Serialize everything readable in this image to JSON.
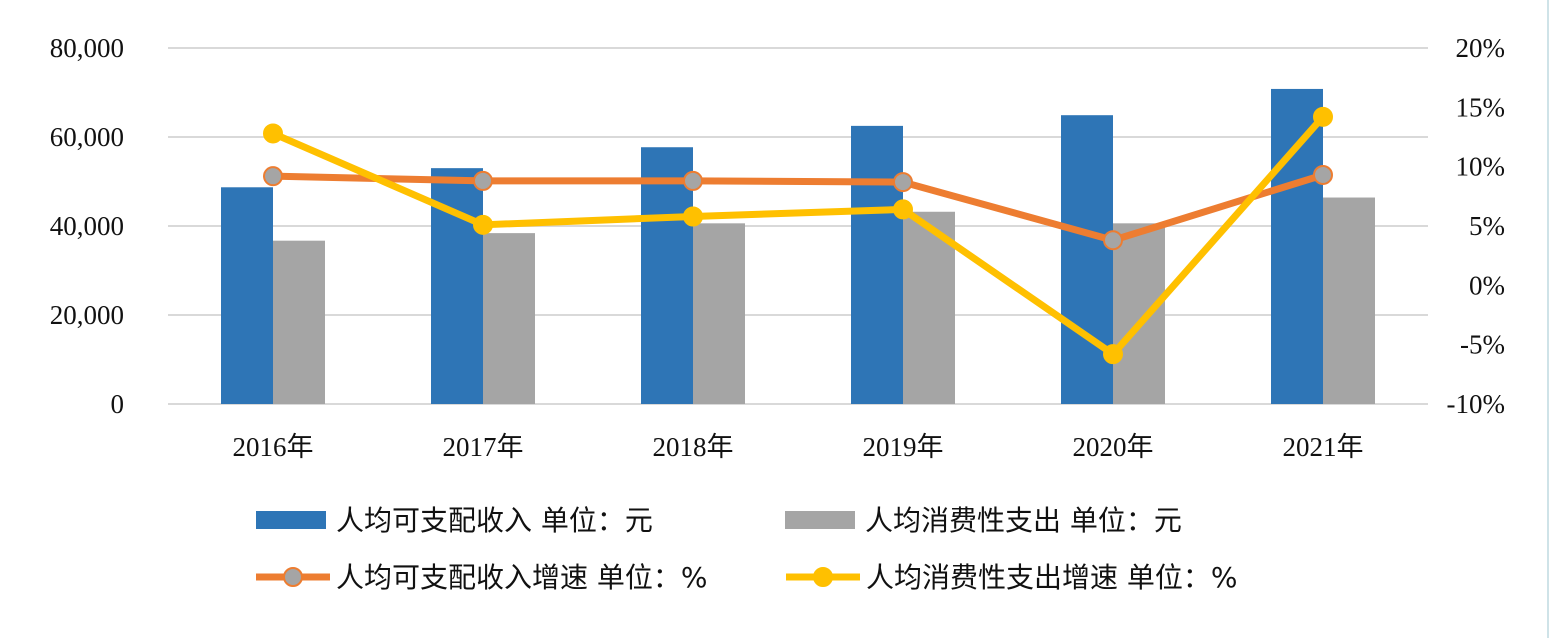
{
  "chart_data": {
    "type": "bar+line",
    "categories": [
      "2016年",
      "2017年",
      "2018年",
      "2019年",
      "2020年",
      "2021年"
    ],
    "y_left": {
      "range": [
        0,
        80000
      ],
      "ticks": [
        0,
        20000,
        40000,
        60000,
        80000
      ],
      "tick_labels": [
        "0",
        "20,000",
        "40,000",
        "60,000",
        "80,000"
      ]
    },
    "y_right": {
      "range": [
        -10,
        20
      ],
      "ticks": [
        -10,
        -5,
        0,
        5,
        10,
        15,
        20
      ],
      "tick_labels": [
        "-10%",
        "-5%",
        "0%",
        "5%",
        "10%",
        "15%",
        "20%"
      ]
    },
    "grid": true,
    "series": [
      {
        "name": "人均可支配收入 单位：元",
        "kind": "bar",
        "axis": "left",
        "color": "#2e75b6",
        "values": [
          48700,
          53000,
          57700,
          62500,
          64900,
          70800
        ]
      },
      {
        "name": "人均消费性支出 单位：元",
        "kind": "bar",
        "axis": "left",
        "color": "#a5a5a5",
        "values": [
          36700,
          38400,
          40600,
          43200,
          40600,
          46400
        ]
      },
      {
        "name": "人均可支配收入增速 单位：%",
        "kind": "line",
        "axis": "right",
        "color": "#ed7d31",
        "marker_fill": "#a5a5a5",
        "values": [
          9.2,
          8.8,
          8.8,
          8.7,
          3.8,
          9.3
        ]
      },
      {
        "name": "人均消费性支出增速 单位：%",
        "kind": "line",
        "axis": "right",
        "color": "#ffc000",
        "marker_fill": "#ffc000",
        "values": [
          12.8,
          5.1,
          5.8,
          6.4,
          -5.8,
          14.2
        ]
      }
    ],
    "legend_position": "bottom"
  }
}
